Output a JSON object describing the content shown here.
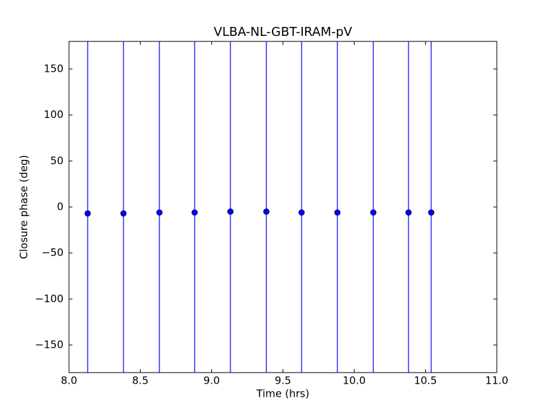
{
  "chart_data": {
    "type": "scatter",
    "title": "VLBA-NL-GBT-IRAM-pV",
    "x_label": "Time (hrs)",
    "y_label": "Closure phase (deg)",
    "xlim": [
      8.0,
      11.0
    ],
    "xticks": [
      {
        "value": 8.0,
        "label": "8.0"
      },
      8.5,
      {
        "value": 9.0,
        "label": "9.0"
      },
      9.5,
      {
        "value": 10.0,
        "label": "10.0"
      },
      10.5,
      {
        "value": 11.0,
        "label": "11.0"
      }
    ],
    "ylim": [
      -180,
      180
    ],
    "yticks": [
      {
        "value": -150,
        "label": "−150"
      },
      {
        "value": -100,
        "label": "−100"
      },
      {
        "value": -50,
        "label": "−50"
      },
      0,
      50,
      100,
      150
    ],
    "series": [
      {
        "color": "#0000ff",
        "x": [
          8.131,
          8.382,
          8.634,
          8.881,
          9.132,
          9.384,
          9.631,
          9.882,
          10.134,
          10.381,
          10.54
        ],
        "values": [
          -7,
          -7,
          -6,
          -6,
          -5,
          -5,
          -6,
          -6,
          -6,
          -6,
          -6
        ],
        "errors": [
          200,
          200,
          200,
          200,
          200,
          200,
          200,
          200,
          200,
          200,
          200
        ]
      }
    ]
  }
}
